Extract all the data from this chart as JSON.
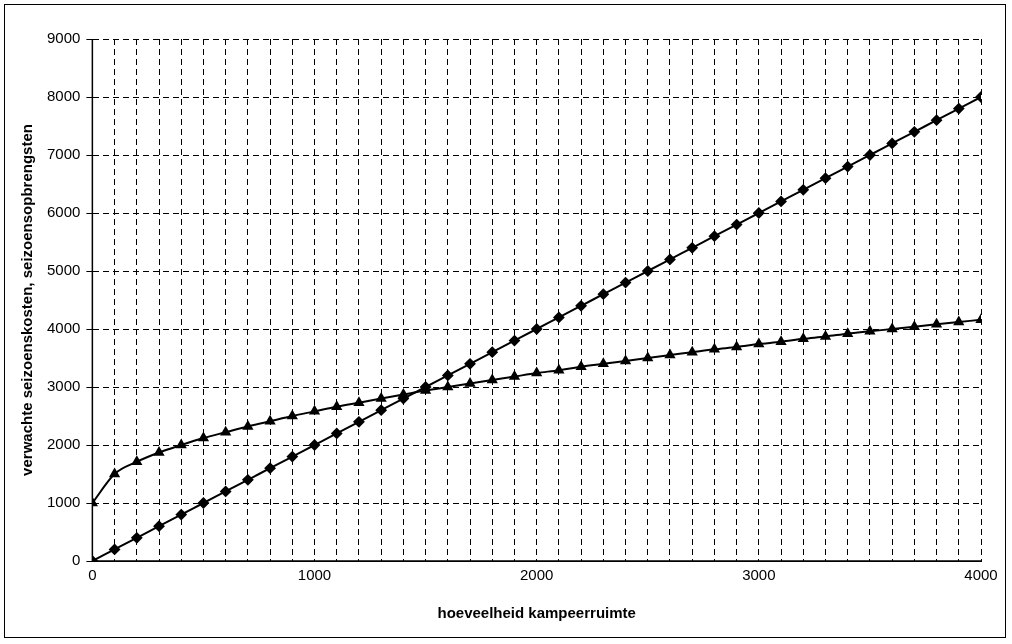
{
  "chart_data": {
    "type": "line",
    "xlabel": "hoeveelheid kampeerruimte",
    "ylabel": "verwachte seizoenskosten, seizoensopbrengsten",
    "x": [
      0,
      100,
      200,
      300,
      400,
      500,
      600,
      700,
      800,
      900,
      1000,
      1100,
      1200,
      1300,
      1400,
      1500,
      1600,
      1700,
      1800,
      1900,
      2000,
      2100,
      2200,
      2300,
      2400,
      2500,
      2600,
      2700,
      2800,
      2900,
      3000,
      3100,
      3200,
      3300,
      3400,
      3500,
      3600,
      3700,
      3800,
      3900,
      4000
    ],
    "series": [
      {
        "color": "#000000",
        "marker": "diamond",
        "values": [
          0,
          200,
          400,
          600,
          800,
          1000,
          1200,
          1400,
          1600,
          1800,
          2000,
          2200,
          2400,
          2600,
          2800,
          3000,
          3200,
          3400,
          3600,
          3800,
          4000,
          4200,
          4400,
          4600,
          4800,
          5000,
          5200,
          5400,
          5600,
          5800,
          6000,
          6200,
          6400,
          6600,
          6800,
          7000,
          7200,
          7400,
          7600,
          7800,
          8000
        ]
      },
      {
        "color": "#000000",
        "marker": "triangle",
        "values": [
          1000,
          1500,
          1710,
          1870,
          2000,
          2120,
          2220,
          2320,
          2410,
          2500,
          2580,
          2660,
          2730,
          2800,
          2870,
          2940,
          3000,
          3060,
          3120,
          3180,
          3240,
          3290,
          3350,
          3400,
          3450,
          3500,
          3550,
          3600,
          3650,
          3690,
          3740,
          3780,
          3830,
          3870,
          3920,
          3960,
          4000,
          4040,
          4080,
          4120,
          4160
        ]
      }
    ],
    "xlim": [
      0,
      4000
    ],
    "xticks": [
      0,
      {
        "value": 100,
        "label": null
      },
      {
        "value": 200,
        "label": null
      },
      {
        "value": 300,
        "label": null
      },
      {
        "value": 400,
        "label": null
      },
      {
        "value": 500,
        "label": null
      },
      {
        "value": 600,
        "label": null
      },
      {
        "value": 700,
        "label": null
      },
      {
        "value": 800,
        "label": null
      },
      {
        "value": 900,
        "label": null
      },
      1000,
      {
        "value": 1100,
        "label": null
      },
      {
        "value": 1200,
        "label": null
      },
      {
        "value": 1300,
        "label": null
      },
      {
        "value": 1400,
        "label": null
      },
      {
        "value": 1500,
        "label": null
      },
      {
        "value": 1600,
        "label": null
      },
      {
        "value": 1700,
        "label": null
      },
      {
        "value": 1800,
        "label": null
      },
      {
        "value": 1900,
        "label": null
      },
      2000,
      {
        "value": 2100,
        "label": null
      },
      {
        "value": 2200,
        "label": null
      },
      {
        "value": 2300,
        "label": null
      },
      {
        "value": 2400,
        "label": null
      },
      {
        "value": 2500,
        "label": null
      },
      {
        "value": 2600,
        "label": null
      },
      {
        "value": 2700,
        "label": null
      },
      {
        "value": 2800,
        "label": null
      },
      {
        "value": 2900,
        "label": null
      },
      3000,
      {
        "value": 3100,
        "label": null
      },
      {
        "value": 3200,
        "label": null
      },
      {
        "value": 3300,
        "label": null
      },
      {
        "value": 3400,
        "label": null
      },
      {
        "value": 3500,
        "label": null
      },
      {
        "value": 3600,
        "label": null
      },
      {
        "value": 3700,
        "label": null
      },
      {
        "value": 3800,
        "label": null
      },
      {
        "value": 3900,
        "label": null
      },
      4000
    ],
    "ylim": [
      0,
      9000
    ],
    "yticks": [
      0,
      1000,
      2000,
      3000,
      4000,
      5000,
      6000,
      7000,
      8000,
      9000
    ],
    "grid": true,
    "legend": false,
    "line_style": "solid"
  }
}
